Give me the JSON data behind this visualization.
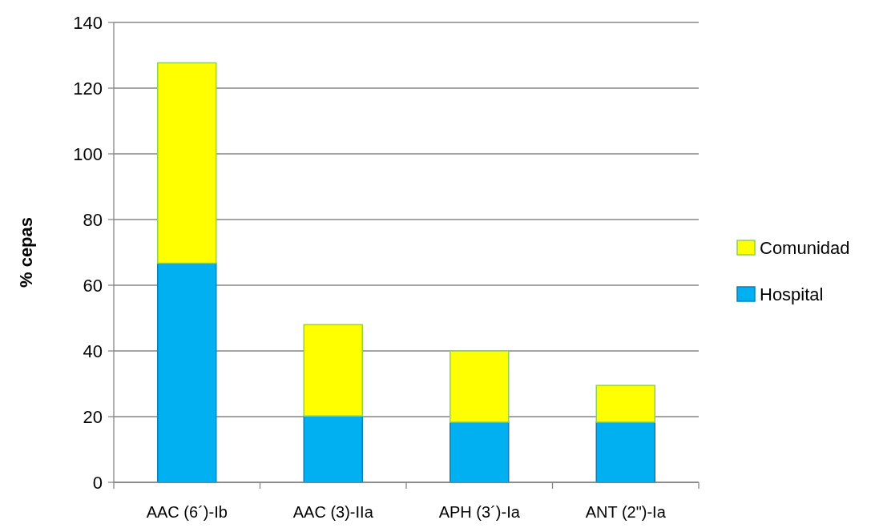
{
  "chart_data": {
    "type": "bar",
    "ylabel": "% cepas",
    "categories": [
      "AAC (6´)-Ib",
      "AAC (3)-IIa",
      "APH (3´)-Ia",
      "ANT (2\")-Ia"
    ],
    "stacked": true,
    "series": [
      {
        "name": "Hospital",
        "color": "#00b0f0",
        "values": [
          66.7,
          20.2,
          18.3,
          18.3
        ]
      },
      {
        "name": "Comunidad",
        "color": "#ffff00",
        "values": [
          61,
          27.8,
          21.7,
          11.2
        ]
      }
    ],
    "ylim": [
      0,
      140
    ],
    "yticks": [
      0,
      20,
      40,
      60,
      80,
      100,
      120,
      140
    ],
    "grid": "y",
    "legend": "right"
  }
}
